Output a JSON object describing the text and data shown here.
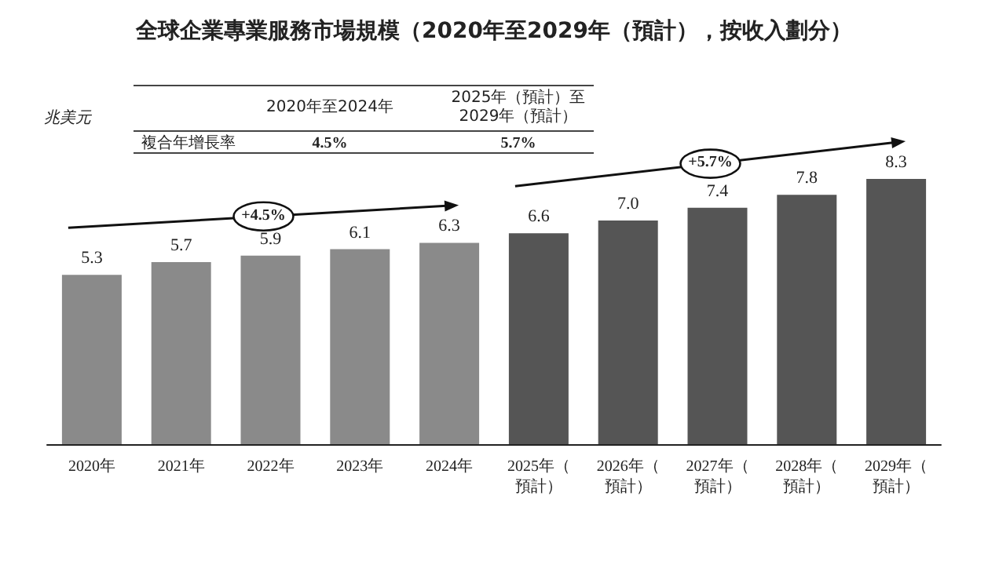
{
  "chart_data": {
    "type": "bar",
    "title": "全球企業專業服務市場規模（2020年至2029年（預計），按收入劃分）",
    "ylabel": "兆美元",
    "categories": [
      "2020年",
      "2021年",
      "2022年",
      "2023年",
      "2024年",
      "2025年（預計）",
      "2026年（預計）",
      "2027年（預計）",
      "2028年（預計）",
      "2029年（預計）"
    ],
    "values": [
      5.3,
      5.7,
      5.9,
      6.1,
      6.3,
      6.6,
      7.0,
      7.4,
      7.8,
      8.3
    ],
    "colors": [
      "#8a8a8a",
      "#8a8a8a",
      "#8a8a8a",
      "#8a8a8a",
      "#8a8a8a",
      "#555555",
      "#555555",
      "#555555",
      "#555555",
      "#555555"
    ],
    "value_labels": [
      "5.3",
      "5.7",
      "5.9",
      "6.1",
      "6.3",
      "6.6",
      "7.0",
      "7.4",
      "7.8",
      "8.3"
    ],
    "annotations": [
      "2020年至2024年",
      "2025年（預計）至2029年（預計）",
      "複合年增長率",
      "4.5%",
      "5.7%",
      "+4.5%",
      "+5.7%"
    ]
  }
}
